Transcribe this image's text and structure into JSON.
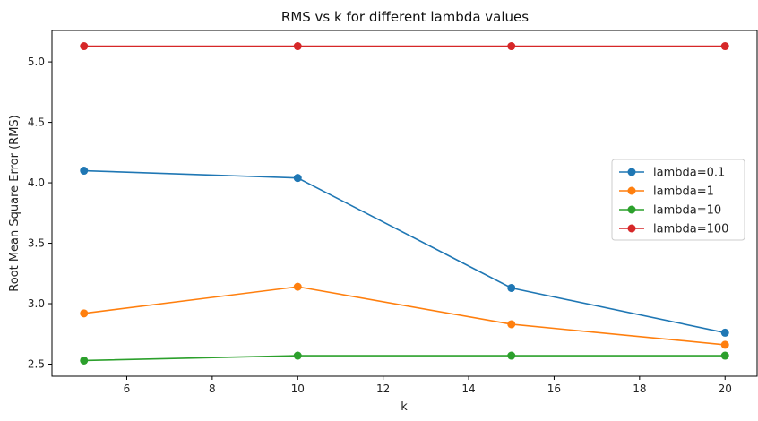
{
  "chart_data": {
    "type": "line",
    "title": "RMS vs k for different lambda values",
    "xlabel": "k",
    "ylabel": "Root Mean Square Error (RMS)",
    "x": [
      5,
      10,
      15,
      20
    ],
    "xlim": [
      4.25,
      20.75
    ],
    "ylim": [
      2.4,
      5.26
    ],
    "xticks": [
      6,
      8,
      10,
      12,
      14,
      16,
      18,
      20
    ],
    "yticks": [
      2.5,
      3.0,
      3.5,
      4.0,
      4.5,
      5.0
    ],
    "xtick_labels": [
      "6",
      "8",
      "10",
      "12",
      "14",
      "16",
      "18",
      "20"
    ],
    "ytick_labels": [
      "2.5",
      "3.0",
      "3.5",
      "4.0",
      "4.5",
      "5.0"
    ],
    "grid": false,
    "legend_position": "center-right",
    "series": [
      {
        "name": "lambda=0.1",
        "color": "#1f77b4",
        "values": [
          4.1,
          4.04,
          3.13,
          2.76
        ]
      },
      {
        "name": "lambda=1",
        "color": "#ff7f0e",
        "values": [
          2.92,
          3.14,
          2.83,
          2.66
        ]
      },
      {
        "name": "lambda=10",
        "color": "#2ca02c",
        "values": [
          2.53,
          2.57,
          2.57,
          2.57
        ]
      },
      {
        "name": "lambda=100",
        "color": "#d62728",
        "values": [
          5.13,
          5.13,
          5.13,
          5.13
        ]
      }
    ]
  }
}
